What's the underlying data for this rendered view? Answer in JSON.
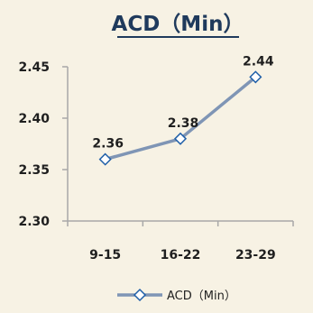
{
  "chart_data": {
    "type": "line",
    "title": "ACD（Min）",
    "categories": [
      "9-15",
      "16-22",
      "23-29"
    ],
    "series": [
      {
        "name": "ACD（Min）",
        "values": [
          2.36,
          2.38,
          2.44
        ],
        "data_labels": [
          "2.36",
          "2.38",
          "2.44"
        ],
        "color": "#7f95b5",
        "marker": "diamond-open",
        "marker_color": "#1f5fa8"
      }
    ],
    "y_ticks": [
      "2.30",
      "2.35",
      "2.40",
      "2.45"
    ],
    "ylim": [
      2.3,
      2.45
    ],
    "grid": false,
    "legend": "bottom",
    "colors": {
      "background": "#f7f2e4",
      "axis": "#a8a8a8",
      "title": "#1f3a5c"
    }
  }
}
